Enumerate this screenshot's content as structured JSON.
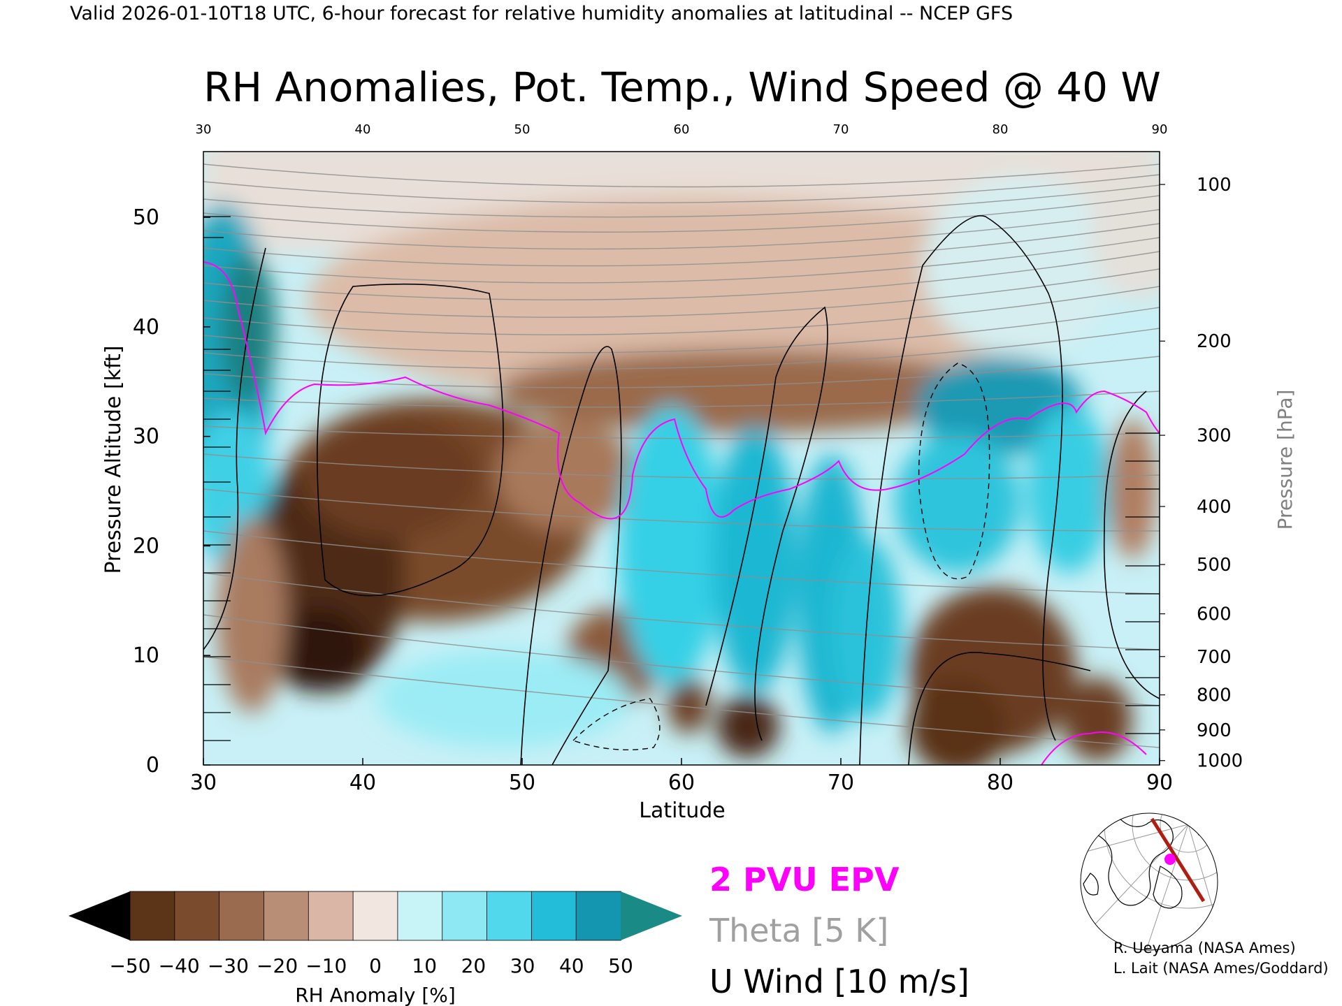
{
  "header": {
    "valid_line": "Valid 2026-01-10T18 UTC, 6-hour forecast for relative humidity anomalies at latitudinal -- NCEP GFS"
  },
  "chart_data": {
    "type": "heatmap",
    "title": "RH Anomalies, Pot. Temp., Wind Speed @ 40 W",
    "xlabel": "Latitude",
    "ylabel_left": "Pressure Altitude [kft]",
    "ylabel_right": "Pressure [hPa]",
    "xlim": [
      30,
      90
    ],
    "ylim": [
      0,
      56
    ],
    "x_ticks": [
      30,
      40,
      50,
      60,
      70,
      80,
      90
    ],
    "x_tick_labels": [
      "30",
      "40",
      "50",
      "60",
      "70",
      "80",
      "90"
    ],
    "y_ticks": [
      0,
      10,
      20,
      30,
      40,
      50
    ],
    "y_tick_labels": [
      "0",
      "10",
      "20",
      "30",
      "40",
      "50"
    ],
    "pressure_ticks": [
      {
        "label": "100",
        "kft": 53.0
      },
      {
        "label": "200",
        "kft": 38.7
      },
      {
        "label": "300",
        "kft": 30.1
      },
      {
        "label": "400",
        "kft": 23.6
      },
      {
        "label": "500",
        "kft": 18.3
      },
      {
        "label": "600",
        "kft": 13.8
      },
      {
        "label": "700",
        "kft": 9.9
      },
      {
        "label": "800",
        "kft": 6.4
      },
      {
        "label": "900",
        "kft": 3.2
      },
      {
        "label": "1000",
        "kft": 0.4
      }
    ],
    "colorbar": {
      "label": "RH Anomaly [%]",
      "range": [
        -50,
        50
      ],
      "tick_labels": [
        "-50",
        "-40",
        "-30",
        "-20",
        "-10",
        "0",
        "10",
        "20",
        "30",
        "40",
        "50"
      ],
      "colors": [
        "#3a1f10",
        "#5c3418",
        "#7a4b2c",
        "#9a6b4e",
        "#b98e76",
        "#d9b6a6",
        "#f2e6e0",
        "#c8f4f8",
        "#8ee8f3",
        "#52d8ec",
        "#23bdd9",
        "#1495b0",
        "#1a8a86"
      ]
    },
    "theta_levels": [
      280,
      290,
      300,
      310,
      320,
      330,
      340,
      350,
      360,
      370,
      380,
      390,
      400,
      410
    ],
    "legend": {
      "epv": "2 PVU EPV",
      "theta": "Theta [5 K]",
      "wind": "U Wind [10 m/s]",
      "epv_color": "#ff00ff",
      "theta_color": "#a0a0a0",
      "wind_color": "#000000"
    }
  },
  "credits": {
    "line1": "R. Ueyama (NASA Ames)",
    "line2": "L. Lait (NASA Ames/Goddard)"
  }
}
